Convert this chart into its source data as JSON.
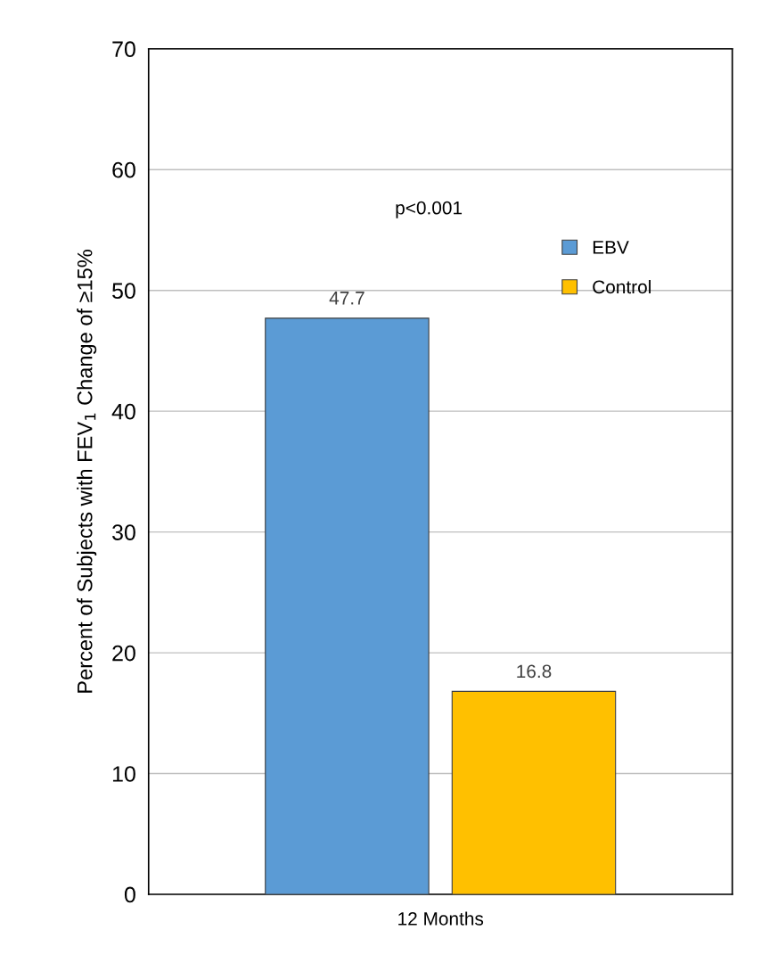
{
  "chart_data": {
    "type": "bar",
    "ylabel": "Percent of Subjects with FEV$_{1}$ Change of ≥15%",
    "categories": [
      "12 Months"
    ],
    "series": [
      {
        "name": "EBV",
        "color": "#5b9bd5",
        "values": [
          47.7
        ]
      },
      {
        "name": "Control",
        "color": "#ffc000",
        "values": [
          16.8
        ]
      }
    ],
    "ylim": [
      0,
      70
    ],
    "yticks": [
      0,
      10,
      20,
      30,
      40,
      50,
      60,
      70
    ],
    "grid": "y",
    "legend": "right",
    "data_labels": true,
    "annotations": [
      "p<0.001"
    ]
  }
}
